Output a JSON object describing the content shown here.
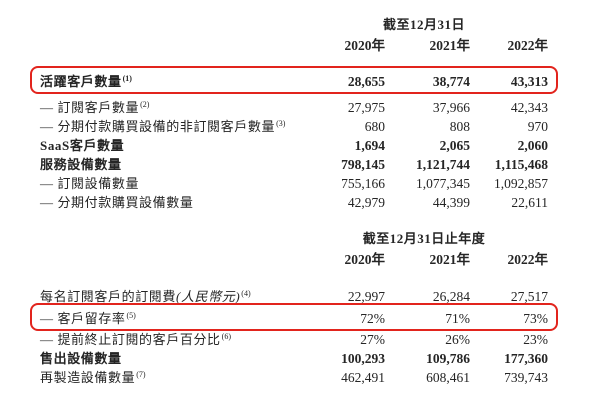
{
  "page": {
    "background_color": "#ffffff",
    "text_color": "#252525",
    "highlight_color": "#e2241d"
  },
  "table1": {
    "period_header": "截至12月31日",
    "years": [
      "2020年",
      "2021年",
      "2022年"
    ],
    "rows": [
      {
        "label": "活躍客戶數量",
        "note": "(1)",
        "v": [
          "28,655",
          "38,774",
          "43,313"
        ]
      },
      {
        "label": "— 訂閱客戶數量",
        "note": "(2)",
        "v": [
          "27,975",
          "37,966",
          "42,343"
        ]
      },
      {
        "label": "— 分期付款購買設備的非訂閱客戶數量",
        "note": "(3)",
        "v": [
          "680",
          "808",
          "970"
        ]
      },
      {
        "label": "SaaS客戶數量",
        "v": [
          "1,694",
          "2,065",
          "2,060"
        ]
      },
      {
        "label": "服務設備數量",
        "v": [
          "798,145",
          "1,121,744",
          "1,115,468"
        ]
      },
      {
        "label": "— 訂閱設備數量",
        "v": [
          "755,166",
          "1,077,345",
          "1,092,857"
        ]
      },
      {
        "label": "— 分期付款購買設備數量",
        "v": [
          "42,979",
          "44,399",
          "22,611"
        ]
      }
    ]
  },
  "table2": {
    "period_header": "截至12月31日止年度",
    "years": [
      "2020年",
      "2021年",
      "2022年"
    ],
    "rows": [
      {
        "label": "每名訂閱客戶的訂閱費",
        "label_it": "(人民幣元)",
        "note": "(4)",
        "v": [
          "22,997",
          "26,284",
          "27,517"
        ]
      },
      {
        "label": "— 客戶留存率",
        "note": "(5)",
        "v": [
          "72%",
          "71%",
          "73%"
        ]
      },
      {
        "label": "— 提前終止訂閱的客戶百分比",
        "note": "(6)",
        "v": [
          "27%",
          "26%",
          "23%"
        ]
      },
      {
        "label": "售出設備數量",
        "v": [
          "100,293",
          "109,786",
          "177,360"
        ]
      },
      {
        "label": "再製造設備數量",
        "note": "(7)",
        "v": [
          "462,491",
          "608,461",
          "739,743"
        ]
      }
    ]
  }
}
